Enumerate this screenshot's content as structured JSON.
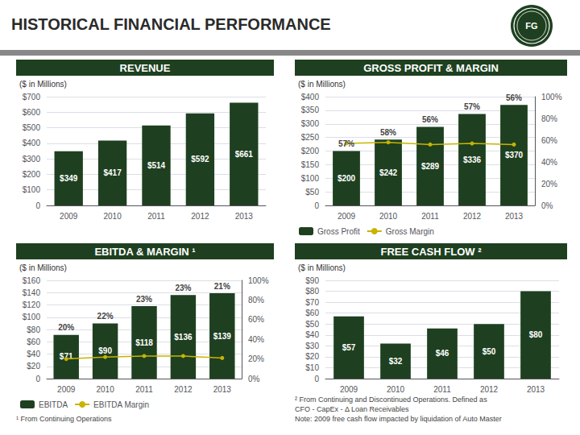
{
  "title": "HISTORICAL FINANCIAL PERFORMANCE",
  "annotations": [
    "FG"
  ],
  "chart_data": [
    {
      "type": "bar",
      "title": "REVENUE",
      "subtitle": "($ in Millions)",
      "categories": [
        "2009",
        "2010",
        "2011",
        "2012",
        "2013"
      ],
      "values": [
        349,
        417,
        514,
        592,
        661
      ],
      "value_labels": [
        "$349",
        "$417",
        "$514",
        "$592",
        "$661"
      ],
      "data_labels": true,
      "color": "#1e4020",
      "ylim": [
        0,
        700
      ],
      "yticks": [
        0,
        {
          "value": 100,
          "label": "$100"
        },
        {
          "value": 200,
          "label": "$200"
        },
        {
          "value": 300,
          "label": "$300"
        },
        {
          "value": 400,
          "label": "$400"
        },
        {
          "value": 500,
          "label": "$500"
        },
        {
          "value": 600,
          "label": "$600"
        },
        {
          "value": 700,
          "label": "$700"
        }
      ],
      "grid": true
    },
    {
      "type": "bar",
      "title": "GROSS PROFIT & MARGIN",
      "subtitle": "($ in Millions)",
      "categories": [
        "2009",
        "2010",
        "2011",
        "2012",
        "2013"
      ],
      "series": [
        {
          "name": "Gross Profit",
          "type": "bar",
          "color": "#1e4020",
          "values": [
            200,
            242,
            289,
            336,
            370
          ],
          "value_labels": [
            "$200",
            "$242",
            "$289",
            "$336",
            "$370"
          ]
        },
        {
          "name": "Gross Margin",
          "type": "line",
          "axis": "y2",
          "color": "#c8b400",
          "marker": "circle",
          "values": [
            0.57,
            0.58,
            0.56,
            0.57,
            0.56
          ],
          "value_labels": [
            "57%",
            "58%",
            "56%",
            "57%",
            "56%"
          ]
        }
      ],
      "data_labels": true,
      "ylim": [
        0,
        400
      ],
      "yticks": [
        0,
        {
          "value": 50,
          "label": "$50"
        },
        {
          "value": 100,
          "label": "$100"
        },
        {
          "value": 150,
          "label": "$150"
        },
        {
          "value": 200,
          "label": "$200"
        },
        {
          "value": 250,
          "label": "$250"
        },
        {
          "value": 300,
          "label": "$300"
        },
        {
          "value": 350,
          "label": "$350"
        },
        {
          "value": 400,
          "label": "$400"
        }
      ],
      "y2lim": [
        0.0,
        1.0
      ],
      "y2ticks": [
        {
          "value": 0.0,
          "label": "0%"
        },
        {
          "value": 0.2,
          "label": "20%"
        },
        {
          "value": 0.4,
          "label": "40%"
        },
        {
          "value": 0.6,
          "label": "60%"
        },
        {
          "value": 0.8,
          "label": "80%"
        },
        {
          "value": 1.0,
          "label": "100%"
        }
      ],
      "grid": true,
      "legend": "lower left"
    },
    {
      "type": "bar",
      "title": "EBITDA & MARGIN ¹",
      "subtitle": "($ in Millions)",
      "annotations": [
        "¹ From Continuing Operations"
      ],
      "categories": [
        "2009",
        "2010",
        "2011",
        "2012",
        "2013"
      ],
      "series": [
        {
          "name": "EBITDA",
          "type": "bar",
          "color": "#1e4020",
          "values": [
            71,
            90,
            118,
            136,
            139
          ],
          "value_labels": [
            "$71",
            "$90",
            "$118",
            "$136",
            "$139"
          ]
        },
        {
          "name": "EBITDA Margin",
          "type": "line",
          "axis": "y2",
          "color": "#c8b400",
          "marker": "circle",
          "values": [
            0.2,
            0.22,
            0.23,
            0.23,
            0.21
          ],
          "value_labels": [
            "20%",
            "22%",
            "23%",
            "23%",
            "21%"
          ]
        }
      ],
      "data_labels": true,
      "ylim": [
        0,
        160
      ],
      "yticks": [
        0,
        {
          "value": 20,
          "label": "$20"
        },
        {
          "value": 40,
          "label": "$40"
        },
        {
          "value": 60,
          "label": "$60"
        },
        {
          "value": 80,
          "label": "$80"
        },
        {
          "value": 100,
          "label": "$100"
        },
        {
          "value": 120,
          "label": "$120"
        },
        {
          "value": 140,
          "label": "$140"
        },
        {
          "value": 160,
          "label": "$160"
        }
      ],
      "y2lim": [
        0.0,
        1.0
      ],
      "y2ticks": [
        {
          "value": 0.0,
          "label": "0%"
        },
        {
          "value": 0.2,
          "label": "20%"
        },
        {
          "value": 0.4,
          "label": "40%"
        },
        {
          "value": 0.6,
          "label": "60%"
        },
        {
          "value": 0.8,
          "label": "80%"
        },
        {
          "value": 1.0,
          "label": "100%"
        }
      ],
      "grid": true,
      "legend": "lower left"
    },
    {
      "type": "bar",
      "title": "FREE CASH FLOW ²",
      "subtitle": "($ in Millions)",
      "annotations": [
        "² From Continuing and Discontinued Operations. Defined as\nCFO - CapEx - Δ Loan Receivables\nNote: 2009 free cash flow impacted by liquidation of Auto Master"
      ],
      "categories": [
        "2009",
        "2010",
        "2011",
        "2012",
        "2013"
      ],
      "values": [
        57,
        32,
        46,
        50,
        80
      ],
      "value_labels": [
        "$57",
        "$32",
        "$46",
        "$50",
        "$80"
      ],
      "data_labels": true,
      "color": "#1e4020",
      "ylim": [
        0,
        90
      ],
      "yticks": [
        0,
        {
          "value": 10,
          "label": "$10"
        },
        {
          "value": 20,
          "label": "$20"
        },
        {
          "value": 30,
          "label": "$30"
        },
        {
          "value": 40,
          "label": "$40"
        },
        {
          "value": 50,
          "label": "$50"
        },
        {
          "value": 60,
          "label": "$60"
        },
        {
          "value": 70,
          "label": "$70"
        },
        {
          "value": 80,
          "label": "$80"
        },
        {
          "value": 90,
          "label": "$90"
        }
      ],
      "grid": true
    }
  ]
}
